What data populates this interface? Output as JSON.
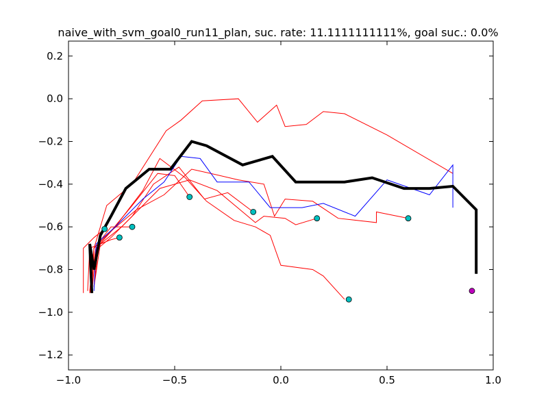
{
  "chart_data": {
    "type": "line",
    "title": "naive_with_svm_goal0_run11_plan, suc. rate: 11.1111111111%, goal suc.: 0.0%",
    "xlabel": "",
    "ylabel": "",
    "xlim": [
      -1.0,
      1.0
    ],
    "ylim": [
      -1.27,
      0.27
    ],
    "x_ticks": [
      -1.0,
      -0.5,
      0.0,
      0.5,
      1.0
    ],
    "x_tick_labels": [
      "−1.0",
      "−0.5",
      "0.0",
      "0.5",
      "1.0"
    ],
    "y_ticks": [
      -1.2,
      -1.0,
      -0.8,
      -0.6,
      -0.4,
      -0.2,
      0.0,
      0.2
    ],
    "y_tick_labels": [
      "−1.2",
      "−1.0",
      "−0.8",
      "−0.6",
      "−0.4",
      "−0.2",
      "0.0",
      "0.2"
    ],
    "grid": false,
    "colors": {
      "failed": "#ff0000",
      "success": "#0000ff",
      "plan": "#000000",
      "end_marker": "#00bfbf",
      "goal_marker": "#bf00bf"
    },
    "series": [
      {
        "role": "plan",
        "color": "#000000",
        "width": 4,
        "x": [
          -0.89,
          -0.9,
          -0.88,
          -0.85,
          -0.8,
          -0.73,
          -0.62,
          -0.52,
          -0.42,
          -0.35,
          -0.18,
          -0.04,
          0.07,
          0.22,
          0.3,
          0.43,
          0.58,
          0.7,
          0.81,
          0.92,
          0.92
        ],
        "y": [
          -0.91,
          -0.68,
          -0.8,
          -0.64,
          -0.55,
          -0.42,
          -0.33,
          -0.33,
          -0.2,
          -0.22,
          -0.31,
          -0.27,
          -0.39,
          -0.39,
          -0.39,
          -0.37,
          -0.42,
          -0.42,
          -0.41,
          -0.52,
          -0.82
        ]
      },
      {
        "role": "success",
        "color": "#0000ff",
        "width": 1,
        "x": [
          -0.88,
          -0.87,
          -0.78,
          -0.65,
          -0.55,
          -0.47,
          -0.38,
          -0.3,
          -0.15,
          -0.05,
          0.1,
          0.2,
          0.35,
          0.5,
          0.7,
          0.81,
          0.81,
          0.81
        ],
        "y": [
          -0.9,
          -0.68,
          -0.6,
          -0.47,
          -0.39,
          -0.27,
          -0.28,
          -0.39,
          -0.39,
          -0.51,
          -0.51,
          -0.49,
          -0.55,
          -0.38,
          -0.45,
          -0.31,
          -0.51,
          -0.31
        ]
      },
      {
        "role": "failed",
        "color": "#ff0000",
        "width": 1,
        "x": [
          -0.89,
          -0.88,
          -0.82,
          -0.7,
          -0.54,
          -0.47,
          -0.37,
          -0.2,
          -0.11,
          -0.02,
          0.02,
          0.12,
          0.2,
          0.3,
          0.5,
          0.81
        ],
        "y": [
          -0.91,
          -0.7,
          -0.5,
          -0.4,
          -0.15,
          -0.1,
          -0.01,
          0.0,
          -0.11,
          -0.03,
          -0.13,
          -0.12,
          -0.06,
          -0.07,
          -0.17,
          -0.35
        ]
      },
      {
        "role": "failed",
        "color": "#ff0000",
        "width": 1,
        "x": [
          -0.88,
          -0.85,
          -0.75,
          -0.57,
          -0.43,
          -0.3,
          -0.12,
          -0.08,
          0.02,
          0.07,
          0.17
        ],
        "y": [
          -0.88,
          -0.68,
          -0.6,
          -0.42,
          -0.38,
          -0.43,
          -0.58,
          -0.55,
          -0.56,
          -0.59,
          -0.56
        ]
      },
      {
        "role": "failed",
        "color": "#ff0000",
        "width": 1,
        "x": [
          -0.9,
          -0.88,
          -0.8,
          -0.7,
          -0.58,
          -0.5,
          -0.43
        ],
        "y": [
          -0.91,
          -0.7,
          -0.62,
          -0.5,
          -0.35,
          -0.36,
          -0.46
        ]
      },
      {
        "role": "failed",
        "color": "#ff0000",
        "width": 1,
        "x": [
          -0.89,
          -0.87,
          -0.78,
          -0.65,
          -0.57,
          -0.45,
          -0.35,
          -0.22,
          -0.12,
          -0.05,
          0.0,
          0.15,
          0.2,
          0.3
        ],
        "y": [
          -0.91,
          -0.7,
          -0.6,
          -0.43,
          -0.28,
          -0.37,
          -0.48,
          -0.57,
          -0.6,
          -0.64,
          -0.78,
          -0.8,
          -0.83,
          -0.94
        ]
      },
      {
        "role": "failed",
        "color": "#ff0000",
        "width": 1,
        "x": [
          -0.88,
          -0.86,
          -0.8,
          -0.7,
          -0.6,
          -0.48,
          -0.36,
          -0.25,
          -0.13
        ],
        "y": [
          -0.88,
          -0.7,
          -0.65,
          -0.55,
          -0.4,
          -0.32,
          -0.47,
          -0.44,
          -0.53
        ]
      },
      {
        "role": "failed",
        "color": "#ff0000",
        "width": 1,
        "x": [
          -0.9,
          -0.88,
          -0.8,
          -0.68,
          -0.55,
          -0.42,
          -0.33,
          -0.2,
          -0.08,
          -0.03,
          0.02,
          0.15,
          0.27,
          0.45,
          0.45,
          0.6
        ],
        "y": [
          -0.9,
          -0.7,
          -0.62,
          -0.52,
          -0.45,
          -0.33,
          -0.35,
          -0.38,
          -0.4,
          -0.55,
          -0.47,
          -0.48,
          -0.56,
          -0.58,
          -0.53,
          -0.56
        ]
      },
      {
        "role": "failed",
        "color": "#ff0000",
        "width": 1,
        "x": [
          -0.9,
          -0.87,
          -0.8,
          -0.72,
          -0.7
        ],
        "y": [
          -0.91,
          -0.69,
          -0.6,
          -0.6,
          -0.6
        ]
      },
      {
        "role": "failed",
        "color": "#ff0000",
        "width": 1,
        "x": [
          -0.91,
          -0.9,
          -0.85,
          -0.8,
          -0.76
        ],
        "y": [
          -0.9,
          -0.7,
          -0.68,
          -0.66,
          -0.65
        ]
      },
      {
        "role": "failed",
        "color": "#ff0000",
        "width": 1,
        "x": [
          -0.93,
          -0.93,
          -0.88,
          -0.83
        ],
        "y": [
          -0.91,
          -0.7,
          -0.65,
          -0.61
        ]
      }
    ],
    "end_points": [
      {
        "x": -0.83,
        "y": -0.61
      },
      {
        "x": -0.76,
        "y": -0.65
      },
      {
        "x": -0.7,
        "y": -0.6
      },
      {
        "x": -0.43,
        "y": -0.46
      },
      {
        "x": -0.13,
        "y": -0.53
      },
      {
        "x": 0.17,
        "y": -0.56
      },
      {
        "x": 0.32,
        "y": -0.94
      },
      {
        "x": 0.6,
        "y": -0.56
      }
    ],
    "goal_point": {
      "x": 0.9,
      "y": -0.9
    }
  }
}
